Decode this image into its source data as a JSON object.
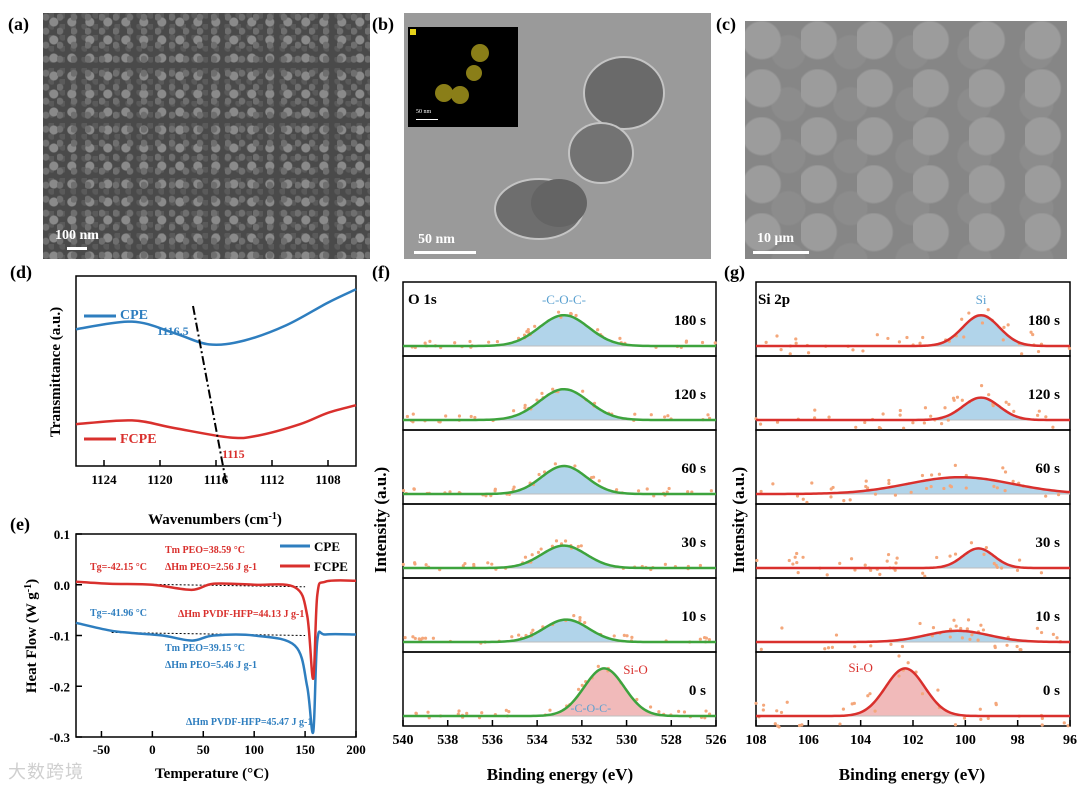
{
  "panels": {
    "a": {
      "label": "(a)",
      "scale": "100 nm"
    },
    "b": {
      "label": "(b)",
      "scale": "50 nm",
      "inset_scale": "50 nm"
    },
    "c": {
      "label": "(c)",
      "scale": "10 μm"
    },
    "d": {
      "label": "(d)"
    },
    "e": {
      "label": "(e)"
    },
    "f": {
      "label": "(f)"
    },
    "g": {
      "label": "(g)"
    }
  },
  "colors": {
    "cpe": "#2e7ebf",
    "fcpe": "#d9302d",
    "fit_green": "#3da33d",
    "fill_blue": "#a9cfe8",
    "fill_red": "#efb3b3",
    "dots": "#f4a77b"
  },
  "chart_data": [
    {
      "type": "line",
      "panel": "d",
      "xlabel": "Wavenumbers (cm-1)",
      "ylabel": "Transmittance (a.u.)",
      "xlim": [
        1126,
        1106
      ],
      "x_ticks": [
        "1124",
        "1120",
        "1116",
        "1112",
        "1108"
      ],
      "series": [
        {
          "name": "CPE",
          "x": [
            1126,
            1122,
            1119,
            1116.5,
            1114,
            1111,
            1108,
            1106
          ],
          "y": [
            0.72,
            0.76,
            0.7,
            0.64,
            0.66,
            0.74,
            0.86,
            0.93
          ]
        },
        {
          "name": "FCPE",
          "x": [
            1126,
            1122,
            1119,
            1115,
            1113,
            1110,
            1108,
            1106
          ],
          "y": [
            0.22,
            0.24,
            0.2,
            0.15,
            0.16,
            0.22,
            0.28,
            0.32
          ]
        }
      ],
      "annotations": [
        "1116.5",
        "1115"
      ]
    },
    {
      "type": "line",
      "panel": "e",
      "xlabel": "Temperature (°C)",
      "ylabel": "Heat Flow (W g-1)",
      "xlim": [
        -75,
        200
      ],
      "ylim": [
        -0.3,
        0.1
      ],
      "x_ticks": [
        "-50",
        "0",
        "50",
        "100",
        "150",
        "200"
      ],
      "y_ticks": [
        "0.1",
        "0.0",
        "-0.1",
        "-0.2",
        "-0.3"
      ],
      "series": [
        {
          "name": "CPE",
          "x": [
            -75,
            -42,
            -20,
            10,
            39,
            60,
            100,
            140,
            152,
            158,
            162,
            170,
            200
          ],
          "y": [
            -0.075,
            -0.09,
            -0.095,
            -0.1,
            -0.11,
            -0.1,
            -0.1,
            -0.12,
            -0.2,
            -0.29,
            -0.11,
            -0.098,
            -0.098
          ]
        },
        {
          "name": "FCPE",
          "x": [
            -75,
            -42,
            0,
            38.6,
            60,
            100,
            140,
            152,
            158,
            162,
            170,
            200
          ],
          "y": [
            0.006,
            0.002,
            0.0,
            -0.01,
            0.002,
            0.0,
            -0.005,
            -0.06,
            -0.185,
            -0.02,
            0.006,
            0.008
          ]
        }
      ],
      "annotations": {
        "fcpe_tm": "Tm PEO=38.59 °C",
        "fcpe_dh": "ΔHm PEO=2.56 J g-1",
        "fcpe_tg": "Tg=-42.15 °C",
        "fcpe_dh_pvdf": "ΔHm PVDF-HFP=44.13 J g-1",
        "cpe_tg": "Tg=-41.96 °C",
        "cpe_tm": "Tm PEO=39.15 °C",
        "cpe_dh": "ΔHm PEO=5.46 J g-1",
        "cpe_dh_pvdf": "ΔHm PVDF-HFP=45.47 J g-1"
      }
    },
    {
      "type": "line",
      "panel": "f",
      "title": "O 1s",
      "xlabel": "Binding energy (eV)",
      "ylabel": "Intensity (a.u.)",
      "xlim": [
        540,
        526
      ],
      "x_ticks": [
        "540",
        "538",
        "536",
        "534",
        "532",
        "530",
        "528",
        "526"
      ],
      "peak_labels": [
        "-C-O-C-",
        "Si-O",
        "-C-O-C-"
      ],
      "stacks": [
        {
          "time": "180 s",
          "peak_center": 532.8,
          "amplitude": 0.55,
          "width": 1.1
        },
        {
          "time": "120 s",
          "peak_center": 532.8,
          "amplitude": 0.55,
          "width": 1.1
        },
        {
          "time": "60 s",
          "peak_center": 532.8,
          "amplitude": 0.5,
          "width": 1.0
        },
        {
          "time": "30 s",
          "peak_center": 532.8,
          "amplitude": 0.4,
          "width": 1.0
        },
        {
          "time": "10 s",
          "peak_center": 532.7,
          "amplitude": 0.4,
          "width": 1.0
        },
        {
          "time": "0 s",
          "peak_center": 531.0,
          "amplitude": 0.85,
          "width": 0.9
        }
      ]
    },
    {
      "type": "line",
      "panel": "g",
      "title": "Si 2p",
      "xlabel": "Binding energy (eV)",
      "ylabel": "Intensity (a.u.)",
      "xlim": [
        108,
        96
      ],
      "x_ticks": [
        "108",
        "106",
        "104",
        "102",
        "100",
        "98",
        "96"
      ],
      "peak_labels": [
        "Si",
        "Si-O"
      ],
      "stacks": [
        {
          "time": "180 s",
          "peak_center": 99.4,
          "amplitude": 0.55,
          "width": 0.7
        },
        {
          "time": "120 s",
          "peak_center": 99.4,
          "amplitude": 0.4,
          "width": 0.7
        },
        {
          "time": "60 s",
          "peak_center": 100.2,
          "amplitude": 0.3,
          "width": 2.0
        },
        {
          "time": "30 s",
          "peak_center": 99.5,
          "amplitude": 0.35,
          "width": 0.6
        },
        {
          "time": "10 s",
          "peak_center": 100.3,
          "amplitude": 0.2,
          "width": 1.2
        },
        {
          "time": "0 s",
          "peak_center": 102.3,
          "amplitude": 0.85,
          "width": 0.75
        }
      ]
    }
  ],
  "watermark": "大数跨境"
}
